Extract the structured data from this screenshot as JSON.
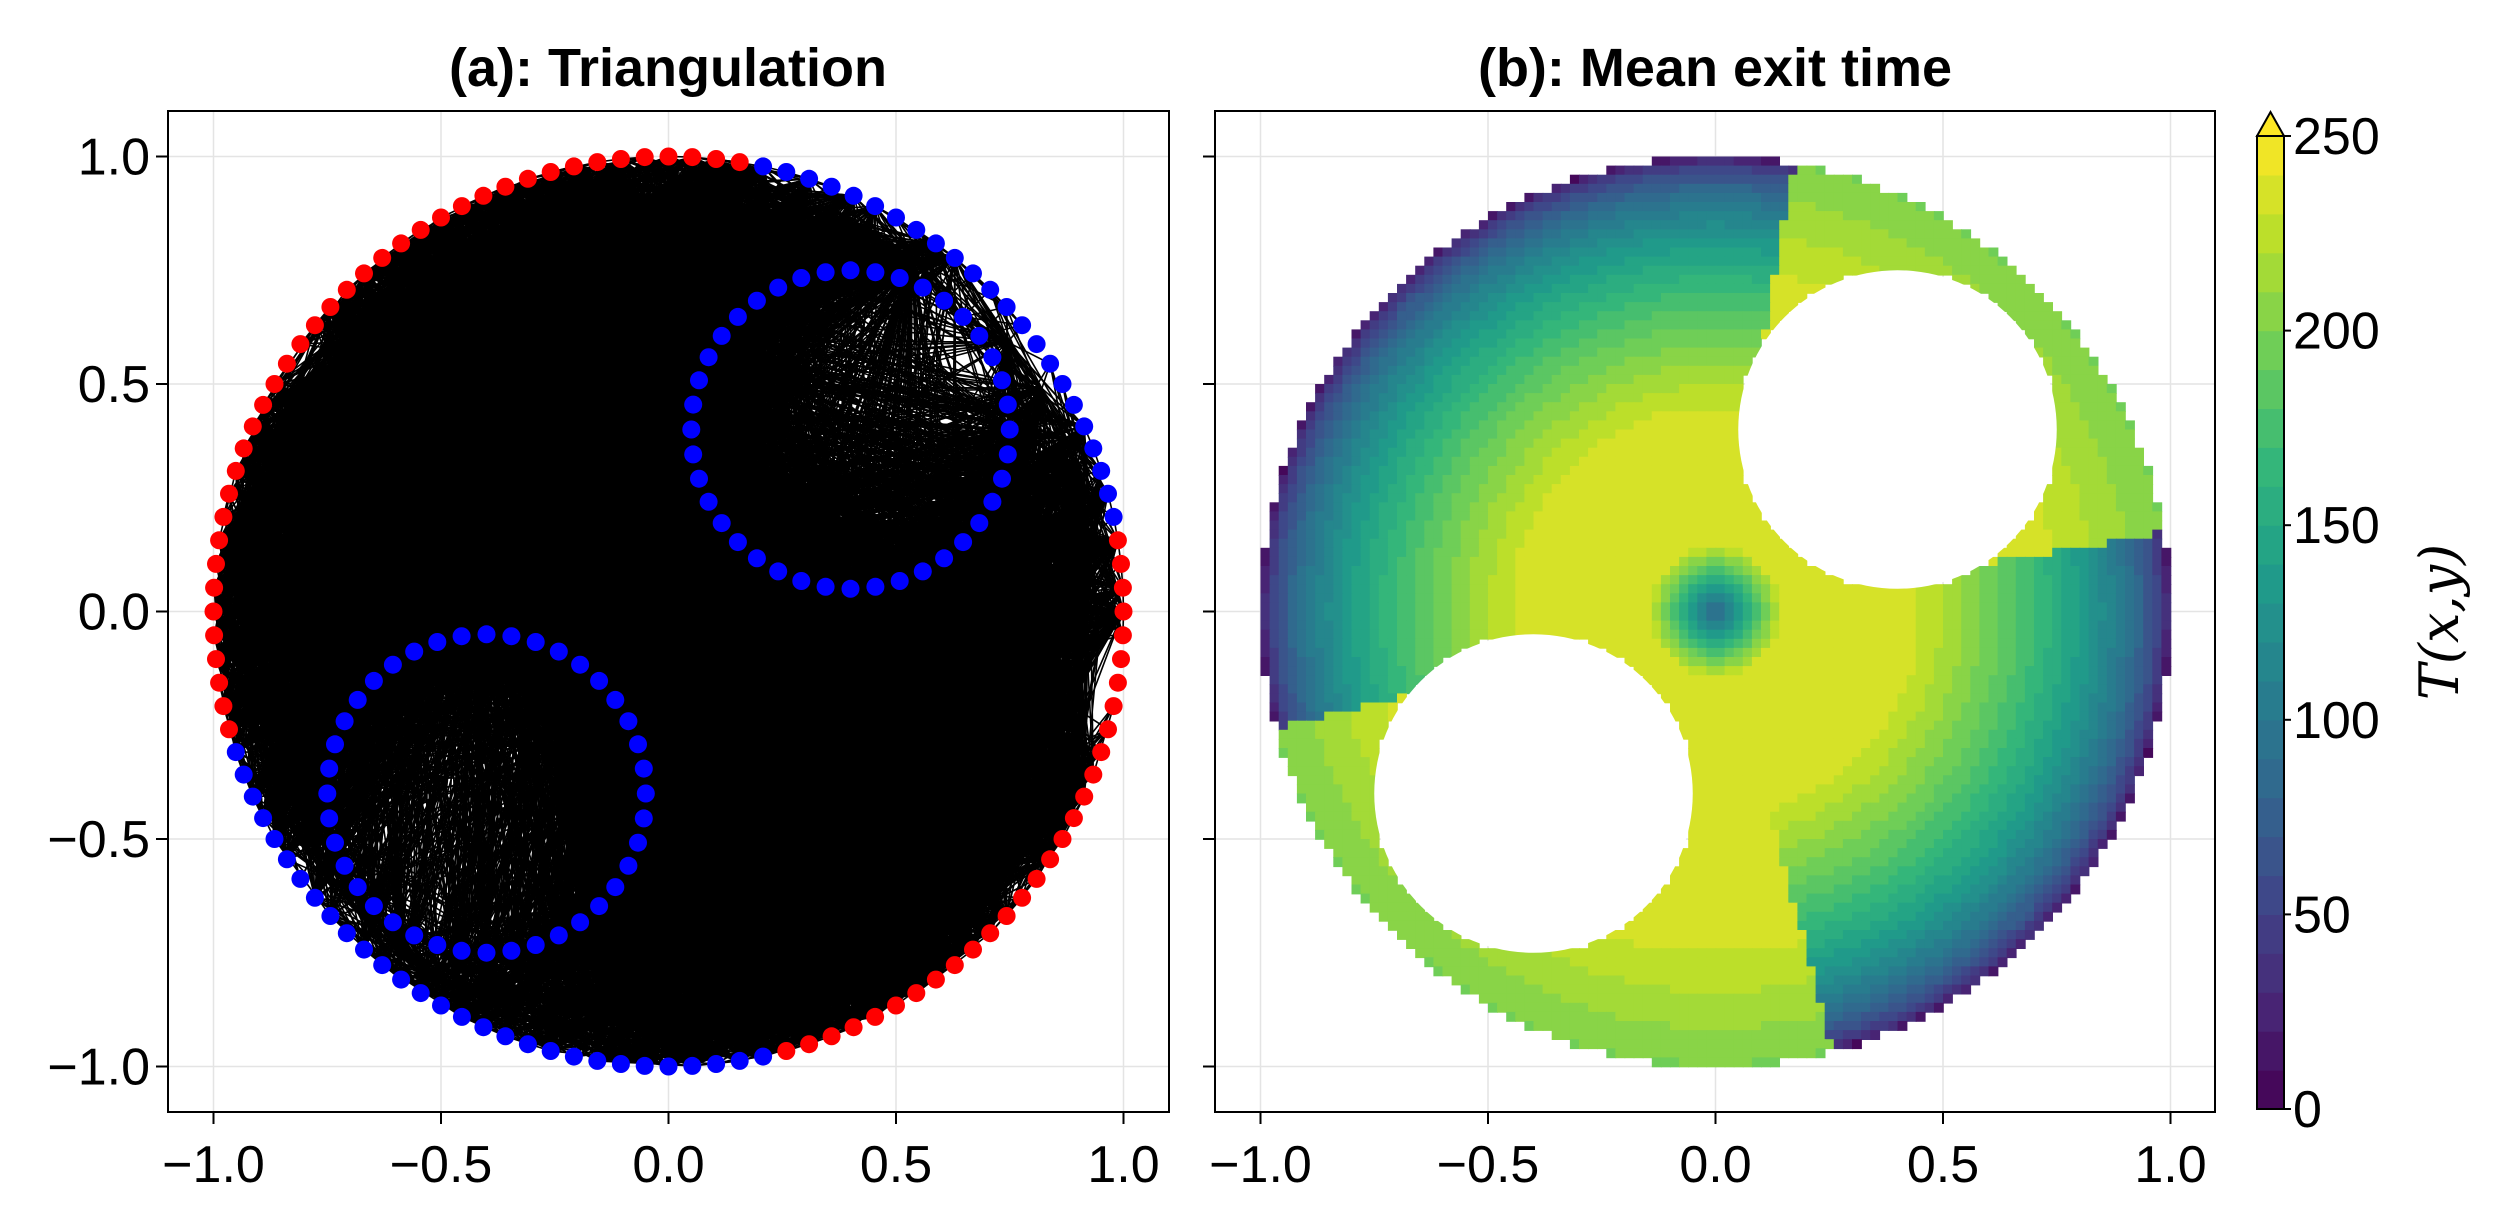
{
  "chart_data": [
    {
      "type": "scatter",
      "title": "(a): Triangulation",
      "xlim": [
        -1.1,
        1.1
      ],
      "ylim": [
        -1.1,
        1.1
      ],
      "x_ticks": [
        "−1.0",
        "−0.5",
        "0.0",
        "0.5",
        "1.0"
      ],
      "y_ticks": [
        "−1.0",
        "−0.5",
        "0.0",
        "0.5",
        "1.0"
      ],
      "x_tick_values": [
        -1.0,
        -0.5,
        0.0,
        0.5,
        1.0
      ],
      "y_tick_values": [
        -1.0,
        -0.5,
        0.0,
        0.5,
        1.0
      ],
      "grid": true,
      "domain": {
        "outer_circle": {
          "cx": 0,
          "cy": 0,
          "r": 1.0
        },
        "holes": [
          {
            "cx": 0.4,
            "cy": 0.4,
            "r": 0.35
          },
          {
            "cx": -0.4,
            "cy": -0.4,
            "r": 0.35
          }
        ]
      },
      "series": [
        {
          "role": "mesh-edges",
          "color": "#000000"
        },
        {
          "role": "absorbing-boundary-nodes",
          "color": "#ff0000"
        },
        {
          "role": "reflecting-boundary-nodes",
          "color": "#0000ff"
        }
      ],
      "outer_boundary_red_angle_ranges_deg": [
        [
          80,
          195
        ],
        [
          285,
          370
        ]
      ]
    },
    {
      "type": "heatmap",
      "title": "(b): Mean exit time",
      "xlim": [
        -1.1,
        1.1
      ],
      "ylim": [
        -1.1,
        1.1
      ],
      "x_ticks": [
        "−1.0",
        "−0.5",
        "0.0",
        "0.5",
        "1.0"
      ],
      "x_tick_values": [
        -1.0,
        -0.5,
        0.0,
        0.5,
        1.0
      ],
      "y_tick_values": [
        -1.0,
        -0.5,
        0.0,
        0.5,
        1.0
      ],
      "grid": true,
      "colormap": "viridis",
      "colorbar": {
        "label": "T(x,y)",
        "range": [
          0,
          250
        ],
        "ticks": [
          "0",
          "50",
          "100",
          "150",
          "200",
          "250"
        ],
        "tick_values": [
          0,
          50,
          100,
          150,
          200,
          250
        ],
        "extend_high_color": "#fde725",
        "levels": 25
      },
      "approx_max_value": 230,
      "colors": [
        "#440154",
        "#482878",
        "#3e4989",
        "#31688e",
        "#26828e",
        "#1f9e89",
        "#35b779",
        "#6ece58",
        "#b5de2b",
        "#fde725"
      ]
    }
  ]
}
